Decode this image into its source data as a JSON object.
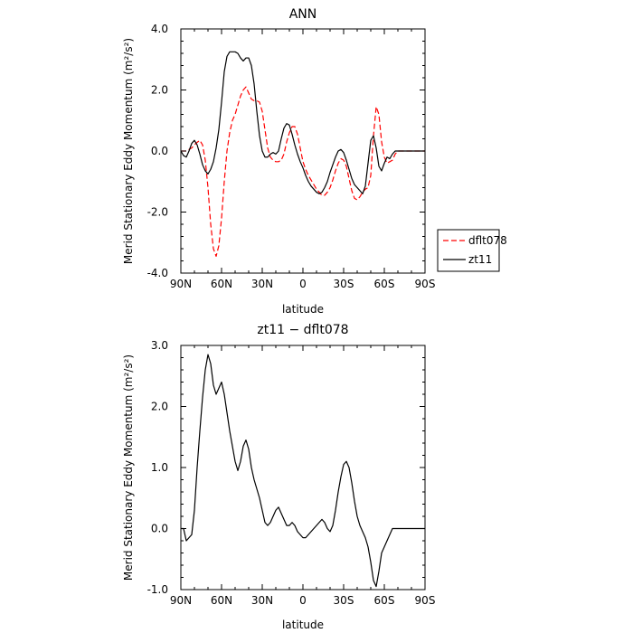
{
  "chart_data": [
    {
      "type": "line",
      "title": "ANN",
      "xlabel": "latitude",
      "ylabel": "Merid Stationary Eddy Momentum (m²/s²)",
      "x_ticks": [
        {
          "value": 90,
          "label": "90N"
        },
        {
          "value": 60,
          "label": "60N"
        },
        {
          "value": 30,
          "label": "30N"
        },
        {
          "value": 0,
          "label": "0"
        },
        {
          "value": -30,
          "label": "30S"
        },
        {
          "value": -60,
          "label": "60S"
        },
        {
          "value": -90,
          "label": "90S"
        }
      ],
      "y_ticks": [
        "-4.0",
        "-2.0",
        "0.0",
        "2.0",
        "4.0"
      ],
      "xlim": [
        90,
        -90
      ],
      "ylim": [
        -4.0,
        4.0
      ],
      "legend_position": "outside-right",
      "series": [
        {
          "name": "dflt078",
          "color": "#ff0000",
          "dash": "dashed",
          "x": [
            90,
            86,
            82,
            79,
            76,
            74,
            72,
            70,
            68,
            66,
            64,
            62,
            60,
            58,
            56,
            54,
            52,
            50,
            48,
            46,
            44,
            42,
            40,
            38,
            36,
            34,
            32,
            30,
            28,
            26,
            24,
            22,
            20,
            18,
            16,
            14,
            12,
            10,
            8,
            6,
            4,
            2,
            0,
            -2,
            -4,
            -6,
            -8,
            -10,
            -12,
            -14,
            -16,
            -18,
            -20,
            -22,
            -24,
            -26,
            -28,
            -30,
            -32,
            -34,
            -36,
            -38,
            -40,
            -42,
            -44,
            -46,
            -48,
            -50,
            -52,
            -54,
            -56,
            -58,
            -60,
            -62,
            -64,
            -66,
            -68,
            -70,
            -72,
            -74,
            -76,
            -78,
            -80,
            -82,
            -84,
            -86,
            -88,
            -90
          ],
          "y": [
            0.0,
            0.0,
            0.1,
            0.25,
            0.35,
            0.2,
            -0.3,
            -1.2,
            -2.4,
            -3.2,
            -3.45,
            -3.1,
            -2.2,
            -1.0,
            0.0,
            0.6,
            1.0,
            1.2,
            1.5,
            1.8,
            2.0,
            2.1,
            1.9,
            1.7,
            1.65,
            1.65,
            1.6,
            1.3,
            0.7,
            0.1,
            -0.2,
            -0.3,
            -0.35,
            -0.35,
            -0.3,
            -0.1,
            0.3,
            0.6,
            0.8,
            0.8,
            0.55,
            0.1,
            -0.35,
            -0.6,
            -0.8,
            -0.95,
            -1.1,
            -1.25,
            -1.35,
            -1.45,
            -1.45,
            -1.35,
            -1.2,
            -0.95,
            -0.65,
            -0.4,
            -0.25,
            -0.3,
            -0.5,
            -0.9,
            -1.3,
            -1.55,
            -1.6,
            -1.5,
            -1.35,
            -1.25,
            -1.2,
            -0.8,
            0.5,
            1.45,
            1.2,
            0.3,
            -0.2,
            -0.4,
            -0.35,
            -0.3,
            -0.1,
            0.0,
            0.0,
            0.0,
            0.0,
            0.0,
            0.0,
            0.0,
            0.0,
            0.0,
            0.0,
            0.0
          ]
        },
        {
          "name": "zt11",
          "color": "#000000",
          "dash": "solid",
          "x": [
            90,
            88,
            86,
            84,
            82,
            80,
            78,
            76,
            74,
            72,
            70,
            68,
            66,
            64,
            62,
            60,
            58,
            56,
            54,
            52,
            50,
            48,
            46,
            44,
            42,
            40,
            38,
            36,
            34,
            32,
            30,
            28,
            26,
            24,
            22,
            20,
            18,
            16,
            14,
            12,
            10,
            8,
            6,
            4,
            2,
            0,
            -2,
            -4,
            -6,
            -8,
            -10,
            -12,
            -14,
            -16,
            -18,
            -20,
            -22,
            -24,
            -26,
            -28,
            -30,
            -32,
            -34,
            -36,
            -38,
            -40,
            -42,
            -44,
            -46,
            -48,
            -50,
            -52,
            -54,
            -56,
            -58,
            -60,
            -62,
            -64,
            -66,
            -68,
            -70,
            -72,
            -74,
            -76,
            -78,
            -80,
            -82,
            -84,
            -86,
            -88,
            -90
          ],
          "y": [
            0.0,
            -0.15,
            -0.2,
            0.0,
            0.25,
            0.35,
            0.2,
            -0.1,
            -0.45,
            -0.65,
            -0.75,
            -0.6,
            -0.35,
            0.1,
            0.7,
            1.6,
            2.6,
            3.1,
            3.25,
            3.25,
            3.25,
            3.2,
            3.05,
            2.95,
            3.05,
            3.05,
            2.8,
            2.2,
            1.3,
            0.5,
            0.0,
            -0.2,
            -0.2,
            -0.1,
            -0.05,
            -0.1,
            0.0,
            0.4,
            0.75,
            0.9,
            0.85,
            0.55,
            0.2,
            -0.1,
            -0.35,
            -0.55,
            -0.8,
            -1.0,
            -1.15,
            -1.25,
            -1.35,
            -1.4,
            -1.35,
            -1.2,
            -1.0,
            -0.7,
            -0.45,
            -0.2,
            0.0,
            0.05,
            -0.05,
            -0.3,
            -0.6,
            -0.9,
            -1.1,
            -1.2,
            -1.3,
            -1.4,
            -1.15,
            -0.4,
            0.35,
            0.5,
            0.1,
            -0.5,
            -0.65,
            -0.4,
            -0.2,
            -0.25,
            -0.1,
            0.0,
            0.0,
            0.0,
            0.0,
            0.0,
            0.0,
            0.0,
            0.0,
            0.0,
            0.0,
            0.0,
            0.0
          ]
        }
      ]
    },
    {
      "type": "line",
      "title": "zt11 − dflt078",
      "xlabel": "latitude",
      "ylabel": "Merid Stationary Eddy Momentum (m²/s²)",
      "x_ticks": [
        {
          "value": 90,
          "label": "90N"
        },
        {
          "value": 60,
          "label": "60N"
        },
        {
          "value": 30,
          "label": "30N"
        },
        {
          "value": 0,
          "label": "0"
        },
        {
          "value": -30,
          "label": "30S"
        },
        {
          "value": -60,
          "label": "60S"
        },
        {
          "value": -90,
          "label": "90S"
        }
      ],
      "y_ticks": [
        "-1.0",
        "0.0",
        "1.0",
        "2.0",
        "3.0"
      ],
      "xlim": [
        90,
        -90
      ],
      "ylim": [
        -1.0,
        3.0
      ],
      "series": [
        {
          "color": "#000000",
          "dash": "solid",
          "x": [
            90,
            88,
            86,
            84,
            82,
            80,
            78,
            76,
            74,
            72,
            70,
            68,
            66,
            64,
            62,
            60,
            58,
            56,
            54,
            52,
            50,
            48,
            46,
            44,
            42,
            40,
            38,
            36,
            34,
            32,
            30,
            28,
            26,
            24,
            22,
            20,
            18,
            16,
            14,
            12,
            10,
            8,
            6,
            4,
            2,
            0,
            -2,
            -4,
            -6,
            -8,
            -10,
            -12,
            -14,
            -16,
            -18,
            -20,
            -22,
            -24,
            -26,
            -28,
            -30,
            -32,
            -34,
            -36,
            -38,
            -40,
            -42,
            -44,
            -46,
            -48,
            -50,
            -52,
            -54,
            -56,
            -58,
            -60,
            -62,
            -64,
            -66,
            -68,
            -70,
            -72,
            -74,
            -76,
            -78,
            -80,
            -82,
            -84,
            -86,
            -88,
            -90
          ],
          "y": [
            0.0,
            0.0,
            -0.2,
            -0.15,
            -0.1,
            0.3,
            1.0,
            1.6,
            2.15,
            2.6,
            2.85,
            2.7,
            2.35,
            2.2,
            2.3,
            2.4,
            2.2,
            1.9,
            1.6,
            1.35,
            1.1,
            0.95,
            1.1,
            1.35,
            1.45,
            1.3,
            1.0,
            0.8,
            0.65,
            0.5,
            0.3,
            0.1,
            0.05,
            0.1,
            0.2,
            0.3,
            0.35,
            0.25,
            0.15,
            0.05,
            0.05,
            0.1,
            0.05,
            -0.05,
            -0.1,
            -0.15,
            -0.15,
            -0.1,
            -0.05,
            0.0,
            0.05,
            0.1,
            0.15,
            0.1,
            0.0,
            -0.05,
            0.05,
            0.3,
            0.6,
            0.85,
            1.05,
            1.1,
            1.0,
            0.75,
            0.45,
            0.2,
            0.05,
            -0.05,
            -0.15,
            -0.3,
            -0.55,
            -0.85,
            -0.95,
            -0.7,
            -0.4,
            -0.3,
            -0.2,
            -0.1,
            0.0,
            0.0,
            0.0,
            0.0,
            0.0,
            0.0,
            0.0,
            0.0,
            0.0,
            0.0,
            0.0,
            0.0,
            0.0
          ]
        }
      ]
    }
  ]
}
